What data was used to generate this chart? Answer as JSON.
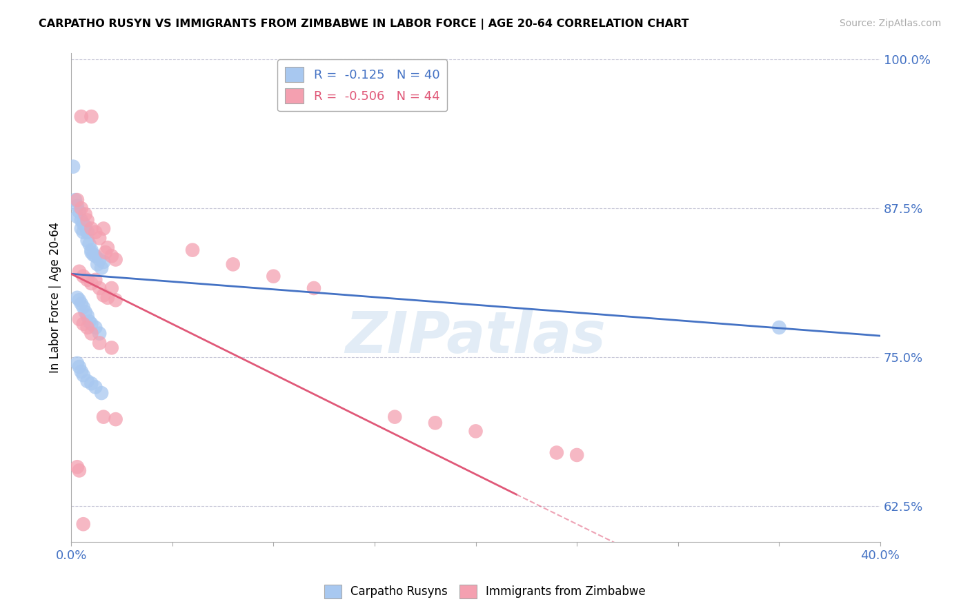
{
  "title": "CARPATHO RUSYN VS IMMIGRANTS FROM ZIMBABWE IN LABOR FORCE | AGE 20-64 CORRELATION CHART",
  "source": "Source: ZipAtlas.com",
  "ylabel": "In Labor Force | Age 20-64",
  "xlim": [
    0.0,
    0.4
  ],
  "ylim": [
    0.595,
    1.005
  ],
  "yticks": [
    0.625,
    0.75,
    0.875,
    1.0
  ],
  "ytick_labels": [
    "62.5%",
    "75.0%",
    "87.5%",
    "100.0%"
  ],
  "xticks": [
    0.0,
    0.05,
    0.1,
    0.15,
    0.2,
    0.25,
    0.3,
    0.35,
    0.4
  ],
  "xtick_labels": [
    "0.0%",
    "",
    "",
    "",
    "",
    "",
    "",
    "",
    "40.0%"
  ],
  "blue_color": "#a8c8f0",
  "pink_color": "#f4a0b0",
  "blue_line_color": "#4472c4",
  "pink_line_color": "#e05878",
  "R_blue": -0.125,
  "N_blue": 40,
  "R_pink": -0.506,
  "N_pink": 44,
  "blue_line": [
    [
      0.0,
      0.82
    ],
    [
      0.4,
      0.768
    ]
  ],
  "pink_line_solid": [
    [
      0.0,
      0.82
    ],
    [
      0.22,
      0.635
    ]
  ],
  "pink_line_dash": [
    [
      0.22,
      0.635
    ],
    [
      0.4,
      0.485
    ]
  ],
  "blue_dots": [
    [
      0.001,
      0.91
    ],
    [
      0.002,
      0.882
    ],
    [
      0.003,
      0.877
    ],
    [
      0.003,
      0.868
    ],
    [
      0.004,
      0.872
    ],
    [
      0.005,
      0.865
    ],
    [
      0.005,
      0.858
    ],
    [
      0.006,
      0.862
    ],
    [
      0.006,
      0.855
    ],
    [
      0.007,
      0.86
    ],
    [
      0.008,
      0.855
    ],
    [
      0.008,
      0.848
    ],
    [
      0.009,
      0.845
    ],
    [
      0.01,
      0.84
    ],
    [
      0.01,
      0.838
    ],
    [
      0.011,
      0.836
    ],
    [
      0.012,
      0.835
    ],
    [
      0.013,
      0.828
    ],
    [
      0.014,
      0.832
    ],
    [
      0.015,
      0.825
    ],
    [
      0.016,
      0.83
    ],
    [
      0.003,
      0.8
    ],
    [
      0.004,
      0.798
    ],
    [
      0.005,
      0.795
    ],
    [
      0.006,
      0.792
    ],
    [
      0.007,
      0.788
    ],
    [
      0.008,
      0.785
    ],
    [
      0.009,
      0.78
    ],
    [
      0.01,
      0.778
    ],
    [
      0.012,
      0.775
    ],
    [
      0.014,
      0.77
    ],
    [
      0.003,
      0.745
    ],
    [
      0.004,
      0.742
    ],
    [
      0.005,
      0.738
    ],
    [
      0.006,
      0.735
    ],
    [
      0.008,
      0.73
    ],
    [
      0.01,
      0.728
    ],
    [
      0.012,
      0.725
    ],
    [
      0.015,
      0.72
    ],
    [
      0.35,
      0.775
    ]
  ],
  "pink_dots": [
    [
      0.005,
      0.952
    ],
    [
      0.01,
      0.952
    ],
    [
      0.003,
      0.882
    ],
    [
      0.005,
      0.875
    ],
    [
      0.007,
      0.87
    ],
    [
      0.008,
      0.865
    ],
    [
      0.01,
      0.858
    ],
    [
      0.012,
      0.855
    ],
    [
      0.014,
      0.85
    ],
    [
      0.016,
      0.858
    ],
    [
      0.017,
      0.838
    ],
    [
      0.018,
      0.842
    ],
    [
      0.02,
      0.835
    ],
    [
      0.022,
      0.832
    ],
    [
      0.004,
      0.822
    ],
    [
      0.006,
      0.818
    ],
    [
      0.008,
      0.815
    ],
    [
      0.01,
      0.812
    ],
    [
      0.012,
      0.815
    ],
    [
      0.014,
      0.808
    ],
    [
      0.016,
      0.802
    ],
    [
      0.018,
      0.8
    ],
    [
      0.02,
      0.808
    ],
    [
      0.022,
      0.798
    ],
    [
      0.004,
      0.782
    ],
    [
      0.006,
      0.778
    ],
    [
      0.008,
      0.775
    ],
    [
      0.01,
      0.77
    ],
    [
      0.014,
      0.762
    ],
    [
      0.02,
      0.758
    ],
    [
      0.016,
      0.7
    ],
    [
      0.022,
      0.698
    ],
    [
      0.003,
      0.658
    ],
    [
      0.004,
      0.655
    ],
    [
      0.006,
      0.61
    ],
    [
      0.16,
      0.7
    ],
    [
      0.18,
      0.695
    ],
    [
      0.2,
      0.688
    ],
    [
      0.24,
      0.67
    ],
    [
      0.25,
      0.668
    ],
    [
      0.06,
      0.84
    ],
    [
      0.08,
      0.828
    ],
    [
      0.1,
      0.818
    ],
    [
      0.12,
      0.808
    ]
  ],
  "watermark_text": "ZIPatlas",
  "background_color": "#ffffff",
  "grid_color": "#c8c8d8"
}
